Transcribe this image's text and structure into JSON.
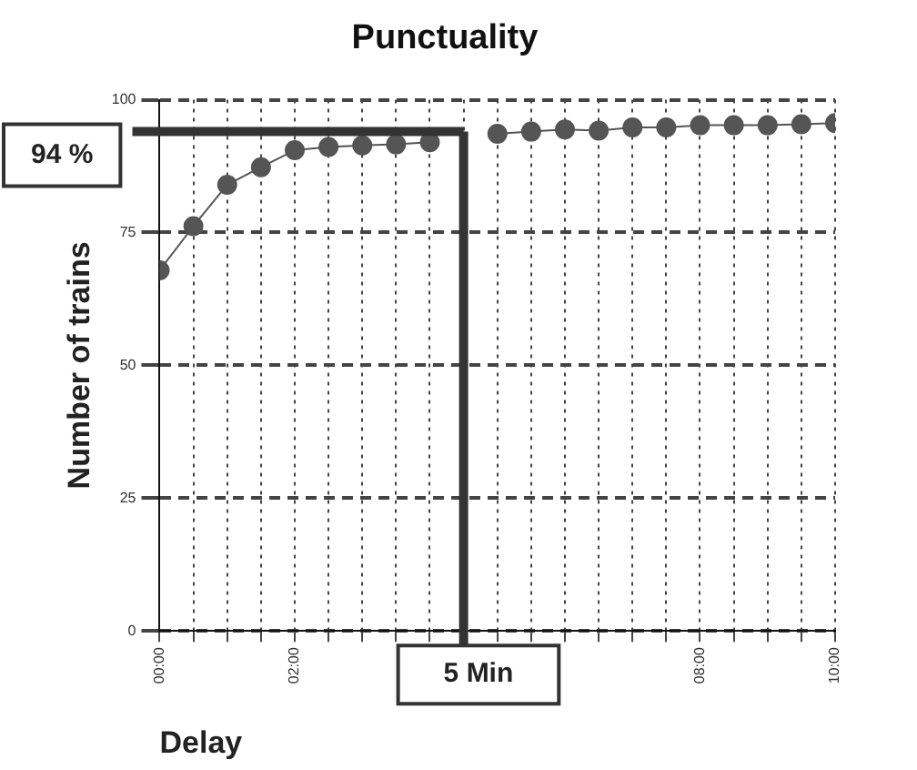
{
  "chart_data": {
    "type": "line",
    "title": "Punctuality",
    "xlabel": "Delay",
    "ylabel": "Number of trains",
    "x": [
      0,
      0.5,
      1,
      1.5,
      2,
      2.5,
      3,
      3.5,
      4,
      4.5,
      5,
      5.5,
      6,
      6.5,
      7,
      7.5,
      8,
      8.5,
      9,
      9.5,
      10
    ],
    "series": [
      {
        "color": "#555555",
        "values": [
          67.9,
          76.2,
          84.0,
          87.3,
          90.5,
          91.1,
          91.4,
          91.6,
          92.0,
          null,
          93.6,
          94.0,
          94.4,
          94.2,
          94.8,
          94.8,
          95.2,
          95.2,
          95.2,
          95.4,
          95.6
        ]
      }
    ],
    "xlim": [
      0,
      10
    ],
    "xticks": [
      {
        "value": 0,
        "label": "00:00"
      },
      {
        "value": 0.5,
        "label": null
      },
      {
        "value": 1,
        "label": null
      },
      {
        "value": 1.5,
        "label": null
      },
      {
        "value": 2,
        "label": "02:00"
      },
      {
        "value": 2.5,
        "label": null
      },
      {
        "value": 3,
        "label": null
      },
      {
        "value": 3.5,
        "label": null
      },
      {
        "value": 4,
        "label": null
      },
      {
        "value": 4.5,
        "label": null
      },
      {
        "value": 5,
        "label": null
      },
      {
        "value": 5.5,
        "label": null
      },
      {
        "value": 6,
        "label": null
      },
      {
        "value": 6.5,
        "label": null
      },
      {
        "value": 7,
        "label": null
      },
      {
        "value": 7.5,
        "label": null
      },
      {
        "value": 8,
        "label": "08:00"
      },
      {
        "value": 8.5,
        "label": null
      },
      {
        "value": 9,
        "label": null
      },
      {
        "value": 9.5,
        "label": null
      },
      {
        "value": 10,
        "label": "10:00"
      }
    ],
    "ylim": [
      0,
      100
    ],
    "yticks": [
      0,
      25,
      50,
      75,
      100
    ],
    "grid": true,
    "marker": "circle",
    "line_style": "solid",
    "legend": false,
    "ref_lines": [
      {
        "axis": "y",
        "value": 94,
        "label": "94 %",
        "color": "#333333"
      },
      {
        "axis": "x",
        "value": 4.5,
        "label": "5 Min",
        "color": "#333333"
      }
    ]
  }
}
